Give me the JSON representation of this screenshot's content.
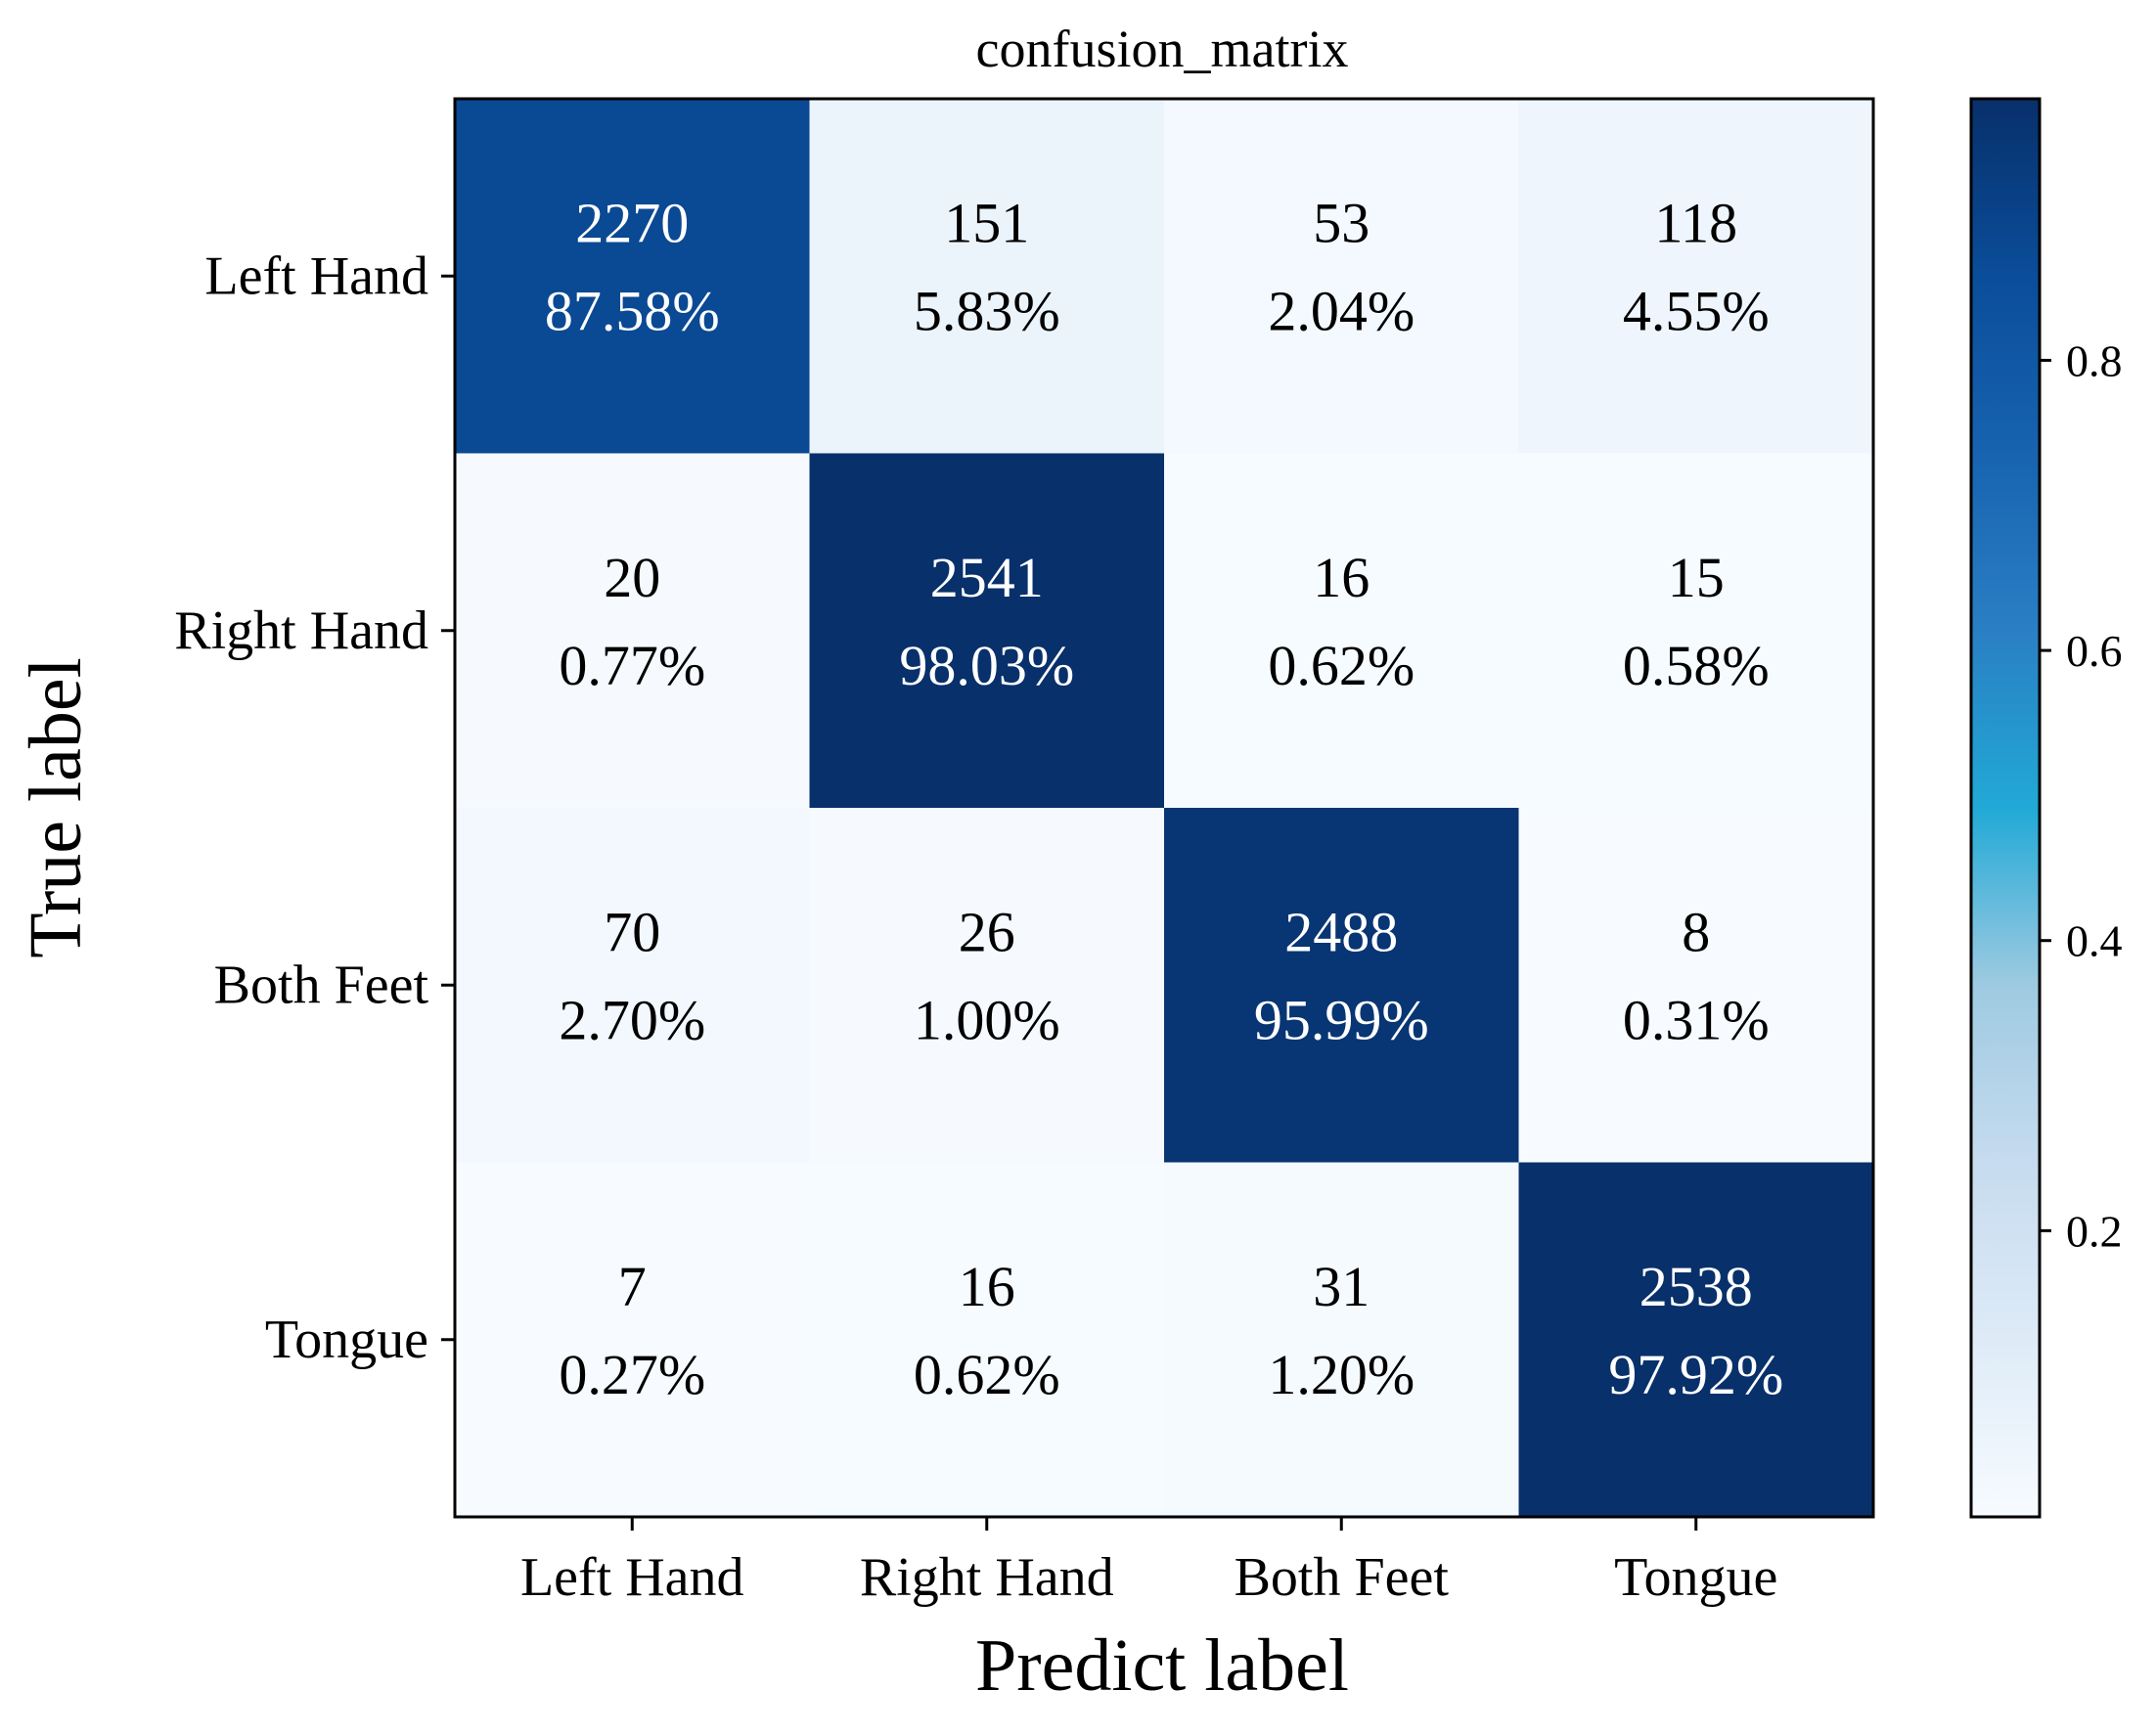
{
  "chart_data": {
    "type": "heatmap",
    "title": "confusion_matrix",
    "xlabel": "Predict label",
    "ylabel": "True label",
    "x_categories": [
      "Left Hand",
      "Right Hand",
      "Both Feet",
      "Tongue"
    ],
    "y_categories": [
      "Left Hand",
      "Right Hand",
      "Both Feet",
      "Tongue"
    ],
    "counts": [
      [
        2270,
        151,
        53,
        118
      ],
      [
        20,
        2541,
        16,
        15
      ],
      [
        70,
        26,
        2488,
        8
      ],
      [
        7,
        16,
        31,
        2538
      ]
    ],
    "percentages": [
      [
        "87.58%",
        "5.83%",
        "2.04%",
        "4.55%"
      ],
      [
        "0.77%",
        "98.03%",
        "0.62%",
        "0.58%"
      ],
      [
        "2.70%",
        "1.00%",
        "95.99%",
        "0.31%"
      ],
      [
        "0.27%",
        "0.62%",
        "1.20%",
        "97.92%"
      ]
    ],
    "values": [
      [
        0.8758,
        0.0583,
        0.0204,
        0.0455
      ],
      [
        0.0077,
        0.9803,
        0.0062,
        0.0058
      ],
      [
        0.027,
        0.01,
        0.9599,
        0.0031
      ],
      [
        0.0027,
        0.0062,
        0.012,
        0.9792
      ]
    ],
    "colormap": "Blues",
    "colorbar": {
      "range": [
        0.0027,
        0.9803
      ],
      "ticks": [
        0.2,
        0.4,
        0.6,
        0.8
      ],
      "tick_labels": [
        "0.2",
        "0.4",
        "0.6",
        "0.8"
      ]
    }
  }
}
